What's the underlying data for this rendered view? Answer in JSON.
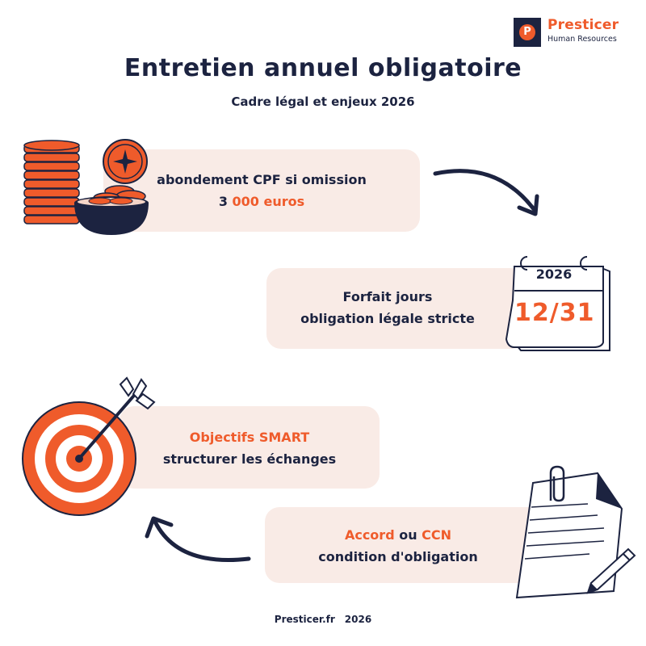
{
  "brand": {
    "name": "Presticer",
    "tagline": "Human Resources",
    "mark_letter": "P",
    "accent_color": "#ef5b2b",
    "navy_color": "#1c2340",
    "card_color": "#f9ebe6"
  },
  "header": {
    "title": "Entretien annuel obligatoire",
    "subtitle": "Cadre légal et enjeux 2026"
  },
  "cards": [
    {
      "line1": "abondement CPF si omission",
      "line2_prefix": "3 ",
      "line2_highlight": "000 euros",
      "icon": "coins-stack-icon"
    },
    {
      "line1": "Forfait jours",
      "line2": "obligation légale stricte",
      "icon": "calendar-icon"
    },
    {
      "line1_highlight": "Objectifs SMART",
      "line2": "structurer les échanges",
      "icon": "target-arrow-icon"
    },
    {
      "line1_highlight_a": "Accord",
      "line1_mid": " ou ",
      "line1_highlight_b": "CCN",
      "line2": "condition d'obligation",
      "icon": "document-pen-icon"
    }
  ],
  "calendar": {
    "year": "2026",
    "date": "12/31"
  },
  "footer": {
    "site": "Presticer.fr",
    "year": "2026"
  }
}
